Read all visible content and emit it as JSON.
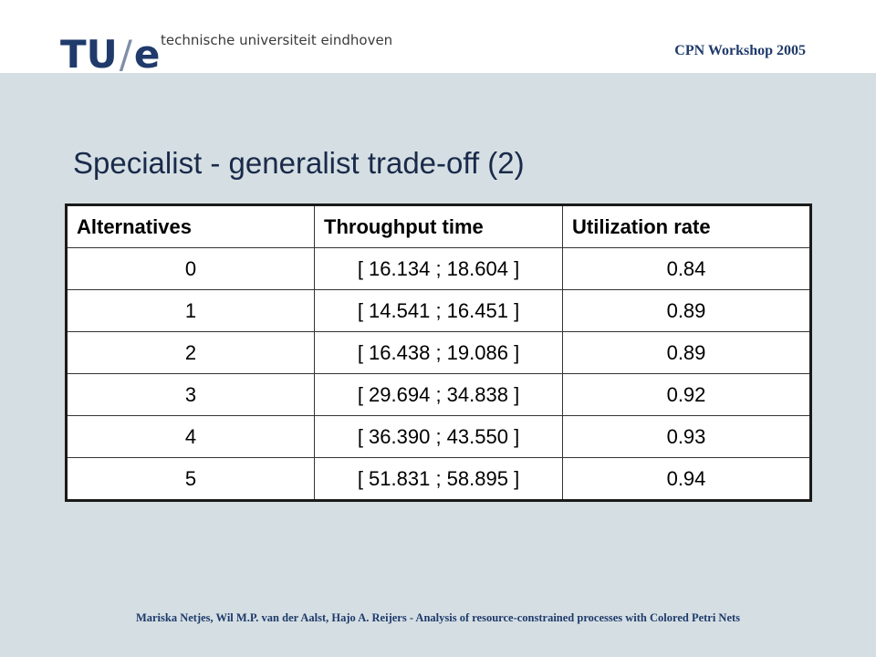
{
  "header": {
    "logo_mark": "TU",
    "logo_slash": "/",
    "logo_e": "e",
    "logo_subtitle": "technische universiteit eindhoven",
    "event": "CPN Workshop 2005"
  },
  "slide": {
    "title": "Specialist - generalist trade-off (2)"
  },
  "table": {
    "headers": [
      "Alternatives",
      "Throughput time",
      "Utilization rate"
    ],
    "rows": [
      [
        "0",
        "[ 16.134 ; 18.604 ]",
        "0.84"
      ],
      [
        "1",
        "[ 14.541 ; 16.451 ]",
        "0.89"
      ],
      [
        "2",
        "[ 16.438 ; 19.086 ]",
        "0.89"
      ],
      [
        "3",
        "[ 29.694 ; 34.838 ]",
        "0.92"
      ],
      [
        "4",
        "[ 36.390 ; 43.550 ]",
        "0.93"
      ],
      [
        "5",
        "[ 51.831 ; 58.895 ]",
        "0.94"
      ]
    ]
  },
  "footer": {
    "text": "Mariska Netjes, Wil M.P. van der Aalst, Hajo A. Reijers - Analysis of resource-constrained processes with Colored Petri Nets"
  }
}
